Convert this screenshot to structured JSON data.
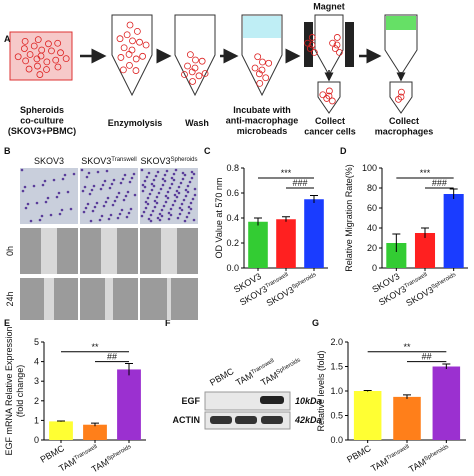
{
  "panel_labels": [
    "A",
    "B",
    "C",
    "D",
    "E",
    "F",
    "G"
  ],
  "workflow": {
    "magnet": "Magnet",
    "steps": [
      [
        "Spheroids",
        "co-culture",
        "(SKOV3+PBMC)"
      ],
      [
        "Enzymolysis"
      ],
      [
        "Wash"
      ],
      [
        "Incubate with",
        "anti-macrophage",
        "microbeads"
      ],
      [
        "Collect",
        "cancer cells"
      ],
      [
        "Collect",
        "macrophages"
      ]
    ]
  },
  "migration_images": {
    "columns": [
      "SKOV3",
      [
        "SKOV3",
        "Transwell"
      ],
      [
        "SKOV3",
        "Spheroids"
      ]
    ],
    "rows": [
      "0h",
      "24h"
    ]
  },
  "western_blot": {
    "lanes": [
      "PBMC",
      [
        "TAM",
        "Transwell"
      ],
      [
        "TAM",
        "Spheroids"
      ]
    ],
    "bands": [
      {
        "protein": "EGF",
        "size": "10kDa"
      },
      {
        "protein": "ACTIN",
        "size": "42kDa"
      }
    ]
  },
  "chart_data": [
    {
      "type": "bar",
      "ylabel": "OD Value at 570 nm",
      "categories": [
        "SKOV3",
        [
          "SKOV3",
          "Transwell"
        ],
        [
          "SKOV3",
          "Spheroids"
        ]
      ],
      "values": [
        0.37,
        0.39,
        0.55
      ],
      "errors": [
        0.03,
        0.02,
        0.03
      ],
      "colors": [
        "#33cc33",
        "#ff2020",
        "#1a3cff"
      ],
      "ylim": [
        0,
        0.8
      ],
      "yticks": [
        {
          "value": 0,
          "label": "0.0"
        },
        0.2,
        0.4,
        0.6,
        0.8
      ],
      "annotations": [
        "***",
        "###"
      ]
    },
    {
      "type": "bar",
      "ylabel": "Relative Migration Rate(%)",
      "categories": [
        "SKOV3",
        [
          "SKOV3",
          "Transwell"
        ],
        [
          "SKOV3",
          "Spheroids"
        ]
      ],
      "values": [
        25,
        35,
        74
      ],
      "errors": [
        9,
        5,
        5
      ],
      "colors": [
        "#33cc33",
        "#ff2020",
        "#1a3cff"
      ],
      "ylim": [
        0,
        100
      ],
      "yticks": [
        0,
        20,
        40,
        60,
        80,
        100
      ],
      "annotations": [
        "***",
        "###"
      ]
    },
    {
      "type": "bar",
      "ylabel": [
        "EGF mRNA Relative Expression",
        "(fold change)"
      ],
      "categories": [
        "PBMC",
        [
          "TAM",
          "Transwell"
        ],
        [
          "TAM",
          "Spheroids"
        ]
      ],
      "values": [
        0.95,
        0.78,
        3.6
      ],
      "errors": [
        0.02,
        0.08,
        0.3
      ],
      "colors": [
        "#ffff33",
        "#ff7f1a",
        "#9b30d0"
      ],
      "ylim": [
        0,
        5
      ],
      "yticks": [
        0,
        1,
        2,
        3,
        4,
        5
      ],
      "annotations": [
        "**",
        "##"
      ]
    },
    {
      "type": "bar",
      "ylabel": "Relative levels (fold)",
      "categories": [
        "PBMC",
        [
          "TAM",
          "Transwell"
        ],
        [
          "TAM",
          "Spheroids"
        ]
      ],
      "values": [
        1.0,
        0.88,
        1.5
      ],
      "errors": [
        0.01,
        0.04,
        0.05
      ],
      "colors": [
        "#ffff33",
        "#ff7f1a",
        "#9b30d0"
      ],
      "ylim": [
        0,
        2
      ],
      "yticks": [
        {
          "value": 0,
          "label": "0.0"
        },
        0.5,
        {
          "value": 1,
          "label": "1.0"
        },
        1.5,
        {
          "value": 2,
          "label": "2.0"
        }
      ],
      "annotations": [
        "**",
        "##"
      ]
    }
  ]
}
